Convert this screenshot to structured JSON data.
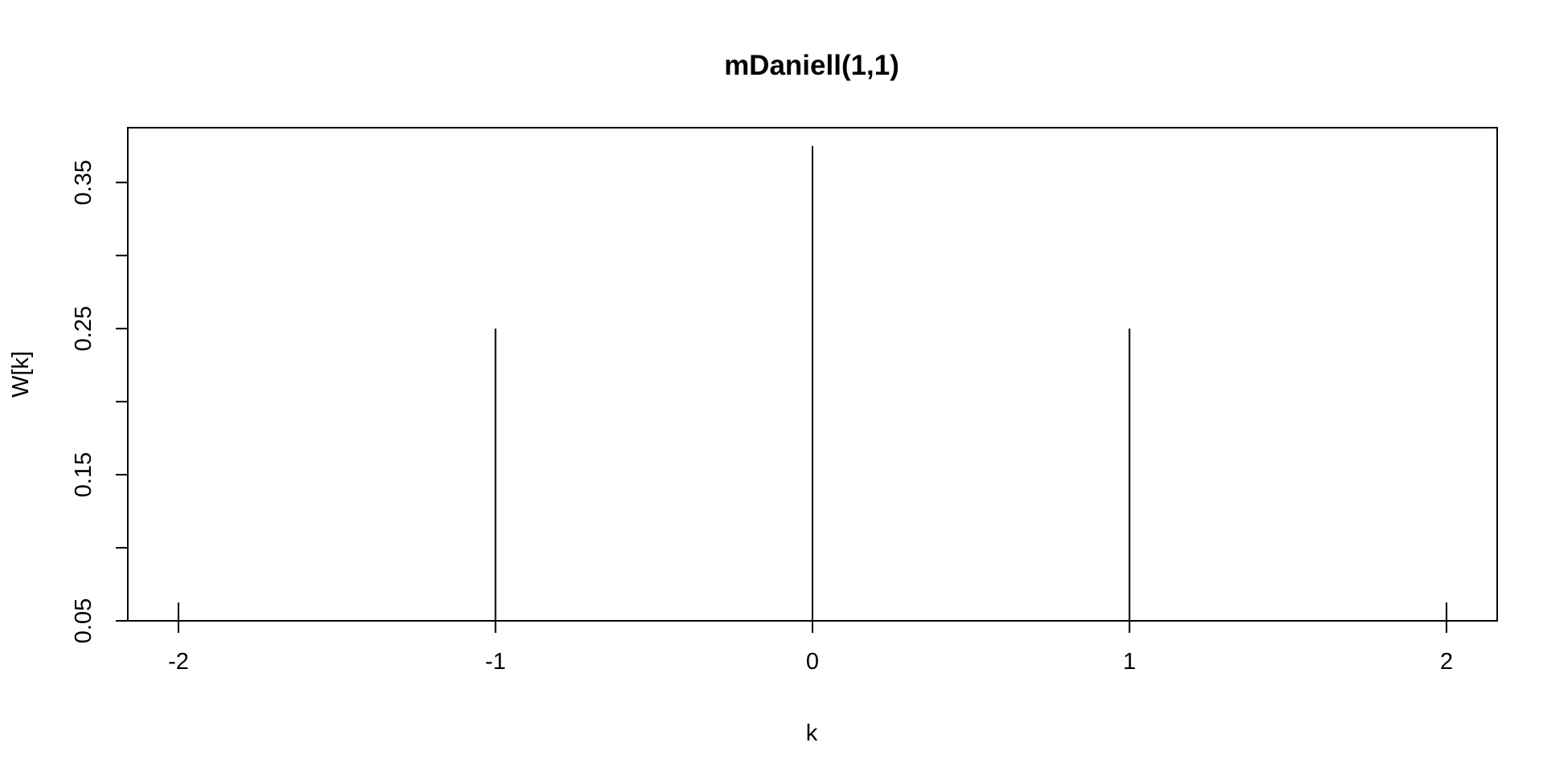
{
  "chart_data": {
    "type": "bar",
    "title": "mDaniell(1,1)",
    "xlabel": "k",
    "ylabel": "W[k]",
    "x": [
      -2,
      -1,
      0,
      1,
      2
    ],
    "values": [
      0.0625,
      0.25,
      0.375,
      0.25,
      0.0625
    ],
    "xlim": [
      -2.16,
      2.16
    ],
    "ylim": [
      0.05,
      0.3875
    ],
    "x_ticks": [
      -2,
      -1,
      0,
      1,
      2
    ],
    "x_tick_labels": [
      "-2",
      "-1",
      "0",
      "1",
      "2"
    ],
    "y_ticks": [
      0.05,
      0.1,
      0.15,
      0.2,
      0.25,
      0.3,
      0.35
    ],
    "y_tick_labels": [
      "0.05",
      "",
      "0.15",
      "",
      "0.25",
      "",
      "0.35"
    ],
    "grid": false,
    "legend": "none",
    "colors": {
      "line": "#000000",
      "background": "#ffffff"
    }
  }
}
